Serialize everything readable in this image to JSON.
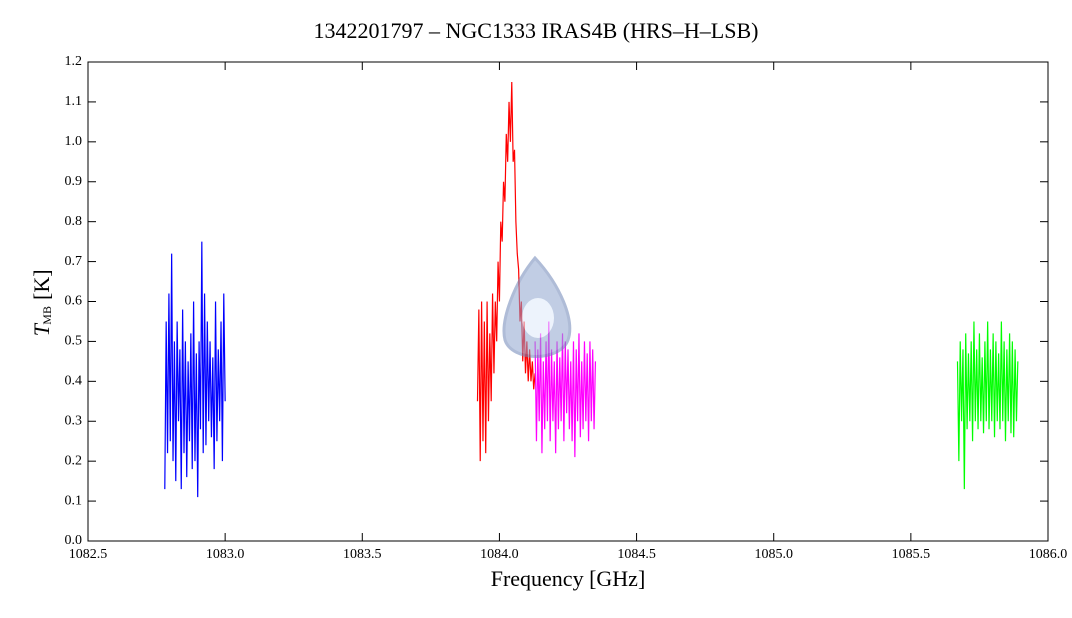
{
  "chart_data": {
    "type": "line",
    "title": "1342201797 – NGC1333 IRAS4B (HRS–H–LSB)",
    "x_label": "Frequency [GHz]",
    "y_label": {
      "symbol": "T",
      "subscript": "MB",
      "unit": "[K]"
    },
    "xlim": [
      1082.5,
      1086.0
    ],
    "ylim": [
      0.0,
      1.2
    ],
    "xticks": [
      {
        "value": 1082.5,
        "label": "1082.5"
      },
      {
        "value": 1083.0,
        "label": "1083.0"
      },
      {
        "value": 1083.5,
        "label": "1083.5"
      },
      {
        "value": 1084.0,
        "label": "1084.0"
      },
      {
        "value": 1084.5,
        "label": "1084.5"
      },
      {
        "value": 1085.0,
        "label": "1085.0"
      },
      {
        "value": 1085.5,
        "label": "1085.5"
      },
      {
        "value": 1086.0,
        "label": "1086.0"
      }
    ],
    "yticks": [
      {
        "value": 0.0,
        "label": "0.0"
      },
      0.1,
      0.2,
      0.3,
      0.4,
      0.5,
      0.6,
      0.7,
      0.8,
      0.9,
      {
        "value": 1.0,
        "label": "1.0"
      },
      1.1,
      1.2
    ],
    "series": [
      {
        "color": "#0000ff",
        "x": [
          1082.78,
          1082.785,
          1082.79,
          1082.795,
          1082.8,
          1082.805,
          1082.81,
          1082.815,
          1082.82,
          1082.825,
          1082.83,
          1082.835,
          1082.84,
          1082.845,
          1082.85,
          1082.855,
          1082.86,
          1082.865,
          1082.87,
          1082.875,
          1082.88,
          1082.885,
          1082.89,
          1082.895,
          1082.9,
          1082.905,
          1082.91,
          1082.915,
          1082.92,
          1082.925,
          1082.93,
          1082.935,
          1082.94,
          1082.945,
          1082.95,
          1082.955,
          1082.96,
          1082.965,
          1082.97,
          1082.975,
          1082.98,
          1082.985,
          1082.99,
          1082.995,
          1083.0
        ],
        "values": [
          0.13,
          0.55,
          0.22,
          0.62,
          0.25,
          0.72,
          0.2,
          0.5,
          0.15,
          0.55,
          0.3,
          0.48,
          0.13,
          0.58,
          0.22,
          0.5,
          0.16,
          0.45,
          0.25,
          0.52,
          0.18,
          0.6,
          0.2,
          0.47,
          0.11,
          0.5,
          0.28,
          0.75,
          0.22,
          0.62,
          0.24,
          0.55,
          0.3,
          0.5,
          0.26,
          0.46,
          0.18,
          0.6,
          0.25,
          0.48,
          0.3,
          0.55,
          0.2,
          0.62,
          0.35
        ]
      },
      {
        "color": "#ff0000",
        "x": [
          1083.92,
          1083.925,
          1083.93,
          1083.935,
          1083.94,
          1083.945,
          1083.95,
          1083.955,
          1083.96,
          1083.965,
          1083.97,
          1083.975,
          1083.98,
          1083.985,
          1083.99,
          1083.995,
          1084.0,
          1084.005,
          1084.01,
          1084.015,
          1084.02,
          1084.025,
          1084.03,
          1084.035,
          1084.04,
          1084.045,
          1084.05,
          1084.055,
          1084.06,
          1084.065,
          1084.07,
          1084.075,
          1084.08,
          1084.085,
          1084.09,
          1084.095,
          1084.1,
          1084.105,
          1084.11,
          1084.115,
          1084.12,
          1084.125,
          1084.13
        ],
        "values": [
          0.35,
          0.58,
          0.2,
          0.6,
          0.25,
          0.55,
          0.22,
          0.6,
          0.3,
          0.52,
          0.35,
          0.62,
          0.42,
          0.6,
          0.5,
          0.7,
          0.6,
          0.8,
          0.75,
          0.9,
          0.85,
          1.02,
          0.95,
          1.1,
          1.0,
          1.15,
          0.95,
          0.98,
          0.8,
          0.72,
          0.68,
          0.55,
          0.6,
          0.45,
          0.55,
          0.42,
          0.5,
          0.4,
          0.48,
          0.4,
          0.45,
          0.38,
          0.42
        ]
      },
      {
        "color": "#ff00ff",
        "x": [
          1084.13,
          1084.135,
          1084.14,
          1084.145,
          1084.15,
          1084.155,
          1084.16,
          1084.165,
          1084.17,
          1084.175,
          1084.18,
          1084.185,
          1084.19,
          1084.195,
          1084.2,
          1084.205,
          1084.21,
          1084.215,
          1084.22,
          1084.225,
          1084.23,
          1084.235,
          1084.24,
          1084.245,
          1084.25,
          1084.255,
          1084.26,
          1084.265,
          1084.27,
          1084.275,
          1084.28,
          1084.285,
          1084.29,
          1084.295,
          1084.3,
          1084.305,
          1084.31,
          1084.315,
          1084.32,
          1084.325,
          1084.33,
          1084.335,
          1084.34,
          1084.345,
          1084.35
        ],
        "values": [
          0.5,
          0.25,
          0.48,
          0.3,
          0.52,
          0.22,
          0.45,
          0.28,
          0.5,
          0.3,
          0.55,
          0.25,
          0.48,
          0.3,
          0.45,
          0.22,
          0.5,
          0.28,
          0.46,
          0.3,
          0.52,
          0.25,
          0.5,
          0.32,
          0.48,
          0.28,
          0.45,
          0.25,
          0.5,
          0.21,
          0.48,
          0.3,
          0.52,
          0.26,
          0.45,
          0.28,
          0.5,
          0.3,
          0.47,
          0.25,
          0.5,
          0.3,
          0.48,
          0.28,
          0.45
        ]
      },
      {
        "color": "#00ff00",
        "x": [
          1085.67,
          1085.675,
          1085.68,
          1085.685,
          1085.69,
          1085.695,
          1085.7,
          1085.705,
          1085.71,
          1085.715,
          1085.72,
          1085.725,
          1085.73,
          1085.735,
          1085.74,
          1085.745,
          1085.75,
          1085.755,
          1085.76,
          1085.765,
          1085.77,
          1085.775,
          1085.78,
          1085.785,
          1085.79,
          1085.795,
          1085.8,
          1085.805,
          1085.81,
          1085.815,
          1085.82,
          1085.825,
          1085.83,
          1085.835,
          1085.84,
          1085.845,
          1085.85,
          1085.855,
          1085.86,
          1085.865,
          1085.87,
          1085.875,
          1085.88,
          1085.885,
          1085.89
        ],
        "values": [
          0.45,
          0.2,
          0.5,
          0.3,
          0.48,
          0.13,
          0.52,
          0.28,
          0.47,
          0.3,
          0.5,
          0.25,
          0.55,
          0.3,
          0.48,
          0.28,
          0.52,
          0.3,
          0.46,
          0.27,
          0.5,
          0.3,
          0.55,
          0.28,
          0.48,
          0.3,
          0.52,
          0.26,
          0.5,
          0.3,
          0.47,
          0.28,
          0.55,
          0.3,
          0.5,
          0.25,
          0.48,
          0.3,
          0.52,
          0.27,
          0.5,
          0.26,
          0.48,
          0.3,
          0.45
        ]
      }
    ]
  }
}
